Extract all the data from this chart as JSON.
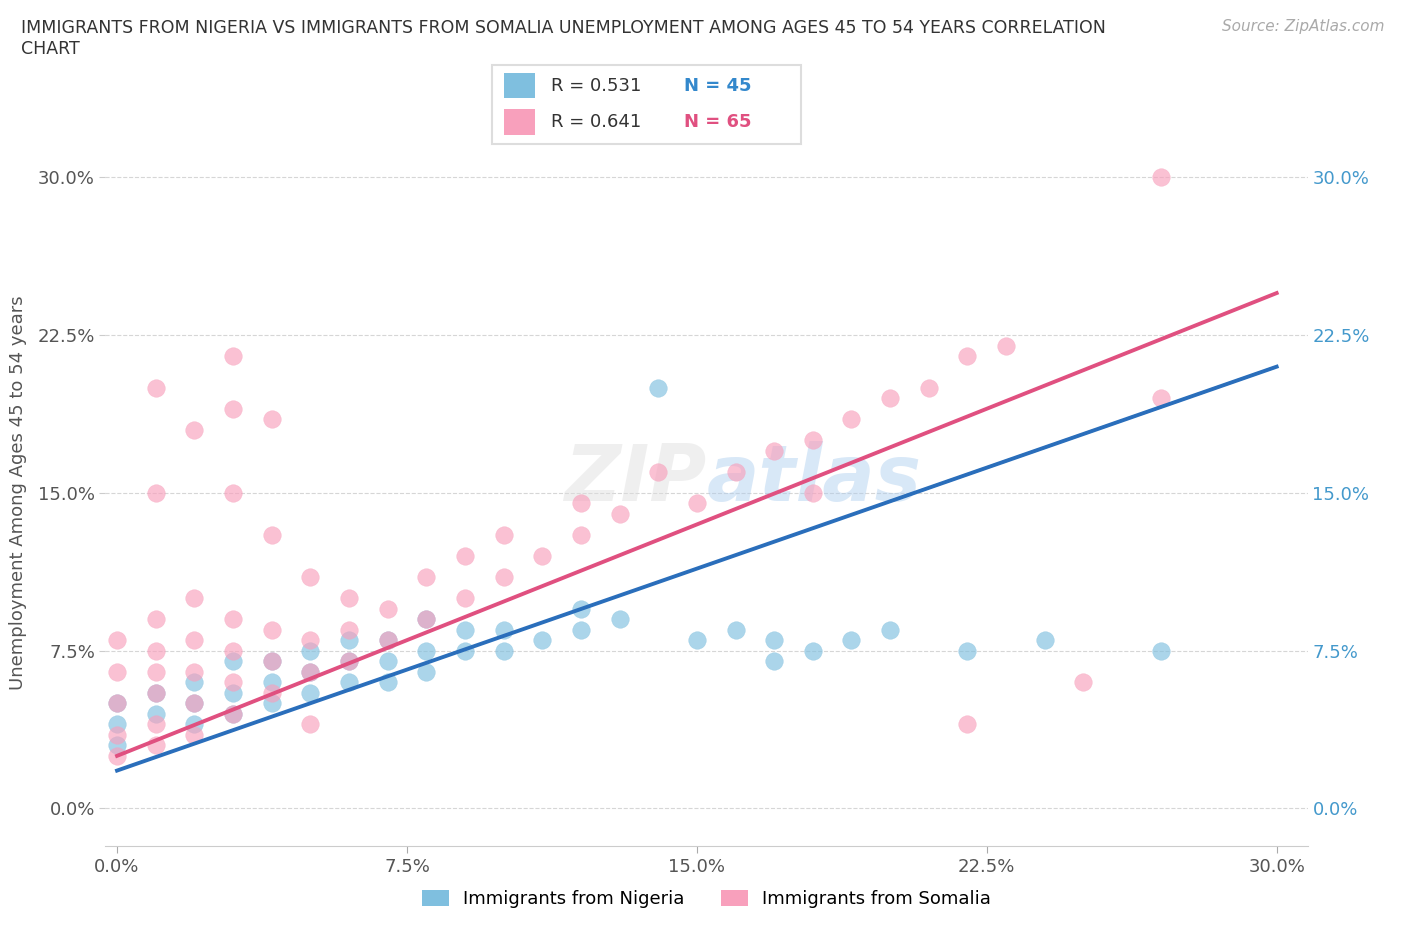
{
  "title_line1": "IMMIGRANTS FROM NIGERIA VS IMMIGRANTS FROM SOMALIA UNEMPLOYMENT AMONG AGES 45 TO 54 YEARS CORRELATION",
  "title_line2": "CHART",
  "source_text": "Source: ZipAtlas.com",
  "ylabel": "Unemployment Among Ages 45 to 54 years",
  "tick_labels": [
    "0.0%",
    "7.5%",
    "15.0%",
    "22.5%",
    "30.0%"
  ],
  "tick_vals": [
    0.0,
    0.075,
    0.15,
    0.225,
    0.3
  ],
  "xlim": [
    -0.003,
    0.308
  ],
  "ylim": [
    -0.018,
    0.318
  ],
  "nigeria_color": "#7fbfdf",
  "somalia_color": "#f8a0bc",
  "nigeria_R": "0.531",
  "nigeria_N": "45",
  "somalia_R": "0.641",
  "somalia_N": "65",
  "nigeria_line_color": "#2a6ebb",
  "somalia_line_color": "#e05080",
  "right_tick_color": "#4499cc",
  "nigeria_label": "Immigrants from Nigeria",
  "somalia_label": "Immigrants from Somalia",
  "nigeria_scatter_x": [
    0.0,
    0.0,
    0.0,
    0.01,
    0.01,
    0.02,
    0.02,
    0.02,
    0.03,
    0.03,
    0.03,
    0.04,
    0.04,
    0.04,
    0.05,
    0.05,
    0.05,
    0.06,
    0.06,
    0.06,
    0.07,
    0.07,
    0.07,
    0.08,
    0.08,
    0.08,
    0.09,
    0.09,
    0.1,
    0.1,
    0.11,
    0.12,
    0.12,
    0.13,
    0.14,
    0.15,
    0.16,
    0.17,
    0.17,
    0.18,
    0.19,
    0.2,
    0.22,
    0.24,
    0.27
  ],
  "nigeria_scatter_y": [
    0.03,
    0.04,
    0.05,
    0.045,
    0.055,
    0.04,
    0.05,
    0.06,
    0.045,
    0.055,
    0.07,
    0.05,
    0.06,
    0.07,
    0.055,
    0.065,
    0.075,
    0.06,
    0.07,
    0.08,
    0.06,
    0.07,
    0.08,
    0.065,
    0.075,
    0.09,
    0.075,
    0.085,
    0.075,
    0.085,
    0.08,
    0.085,
    0.095,
    0.09,
    0.2,
    0.08,
    0.085,
    0.07,
    0.08,
    0.075,
    0.08,
    0.085,
    0.075,
    0.08,
    0.075
  ],
  "somalia_scatter_x": [
    0.0,
    0.0,
    0.0,
    0.0,
    0.0,
    0.01,
    0.01,
    0.01,
    0.01,
    0.01,
    0.01,
    0.02,
    0.02,
    0.02,
    0.02,
    0.02,
    0.03,
    0.03,
    0.03,
    0.03,
    0.03,
    0.04,
    0.04,
    0.04,
    0.04,
    0.05,
    0.05,
    0.05,
    0.06,
    0.06,
    0.06,
    0.07,
    0.07,
    0.08,
    0.08,
    0.09,
    0.09,
    0.1,
    0.1,
    0.11,
    0.12,
    0.12,
    0.13,
    0.14,
    0.15,
    0.16,
    0.17,
    0.18,
    0.18,
    0.19,
    0.2,
    0.21,
    0.22,
    0.23,
    0.25,
    0.27,
    0.02,
    0.03,
    0.04,
    0.01,
    0.01,
    0.03,
    0.05,
    0.22,
    0.27
  ],
  "somalia_scatter_y": [
    0.025,
    0.035,
    0.05,
    0.065,
    0.08,
    0.03,
    0.04,
    0.055,
    0.065,
    0.075,
    0.09,
    0.035,
    0.05,
    0.065,
    0.08,
    0.1,
    0.045,
    0.06,
    0.075,
    0.09,
    0.15,
    0.055,
    0.07,
    0.085,
    0.13,
    0.065,
    0.08,
    0.11,
    0.07,
    0.085,
    0.1,
    0.08,
    0.095,
    0.09,
    0.11,
    0.1,
    0.12,
    0.11,
    0.13,
    0.12,
    0.13,
    0.145,
    0.14,
    0.16,
    0.145,
    0.16,
    0.17,
    0.15,
    0.175,
    0.185,
    0.195,
    0.2,
    0.215,
    0.22,
    0.06,
    0.195,
    0.18,
    0.19,
    0.185,
    0.15,
    0.2,
    0.215,
    0.04,
    0.04,
    0.3
  ],
  "nig_line_x0": 0.0,
  "nig_line_y0": 0.018,
  "nig_line_x1": 0.3,
  "nig_line_y1": 0.21,
  "som_line_x0": 0.0,
  "som_line_y0": 0.025,
  "som_line_x1": 0.3,
  "som_line_y1": 0.245
}
